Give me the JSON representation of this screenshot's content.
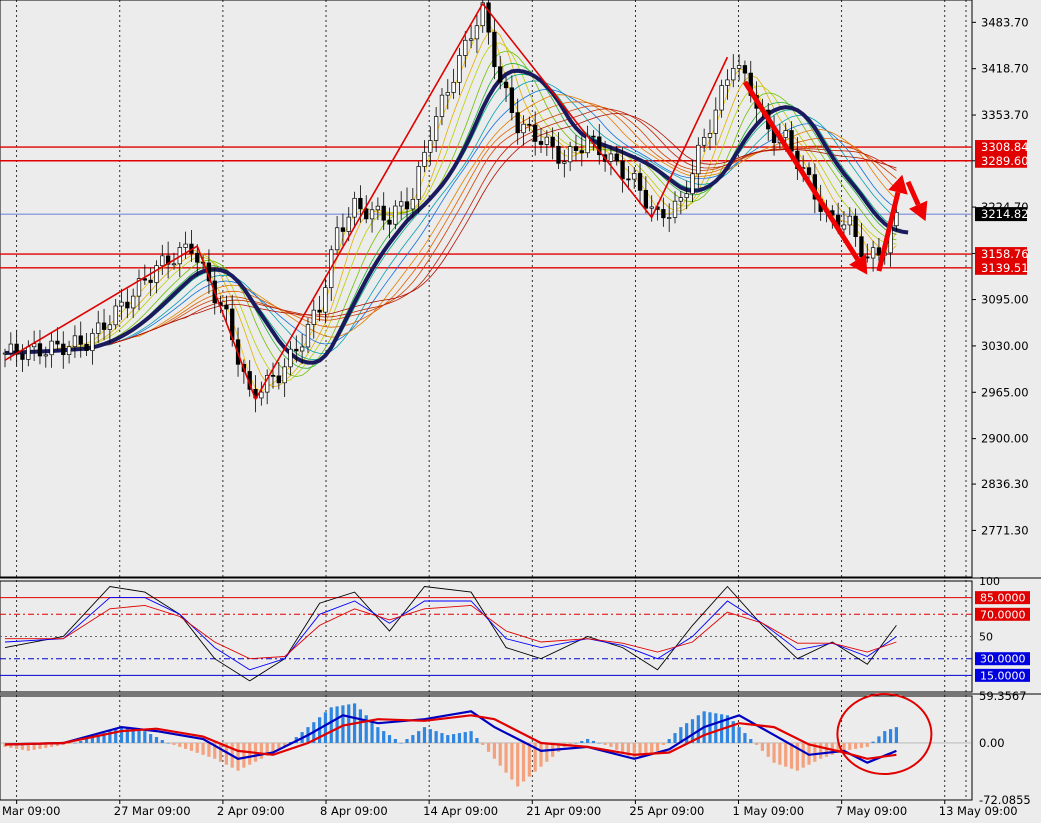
{
  "chart_data": [
    {
      "type": "candlestick",
      "panel": "price",
      "title": "",
      "ylim": [
        2706.0,
        3515.0
      ],
      "y_ticks": [
        "3483.70",
        "3418.70",
        "3353.70",
        "3289.60",
        "3224.70",
        "3159.60",
        "3095.00",
        "3030.00",
        "2965.00",
        "2900.00",
        "2836.30",
        "2771.30"
      ],
      "x_ticks": [
        "Mar 09:00",
        "27 Mar 09:00",
        "2 Apr 09:00",
        "8 Apr 09:00",
        "14 Apr 09:00",
        "21 Apr 09:00",
        "25 Apr 09:00",
        "1 May 09:00",
        "7 May 09:00",
        "13 May 09:00"
      ],
      "x_range_bars": [
        0,
        160
      ],
      "current_price": "3214.82",
      "price_labels": [
        "3308.84",
        "3289.60",
        "3158.76",
        "3139.51"
      ],
      "horizontal_levels": [
        3308.84,
        3289.6,
        3158.76,
        3139.51
      ],
      "price_path": [
        [
          0,
          3020
        ],
        [
          7,
          3025
        ],
        [
          14,
          3035
        ],
        [
          20,
          3085
        ],
        [
          26,
          3140
        ],
        [
          32,
          3170
        ],
        [
          34,
          3135
        ],
        [
          38,
          3070
        ],
        [
          42,
          2960
        ],
        [
          47,
          2990
        ],
        [
          50,
          3025
        ],
        [
          54,
          3085
        ],
        [
          57,
          3190
        ],
        [
          60,
          3225
        ],
        [
          66,
          3210
        ],
        [
          70,
          3240
        ],
        [
          73,
          3330
        ],
        [
          77,
          3410
        ],
        [
          80,
          3470
        ],
        [
          82,
          3500
        ],
        [
          85,
          3400
        ],
        [
          88,
          3340
        ],
        [
          92,
          3320
        ],
        [
          96,
          3290
        ],
        [
          100,
          3320
        ],
        [
          104,
          3290
        ],
        [
          108,
          3260
        ],
        [
          112,
          3210
        ],
        [
          116,
          3230
        ],
        [
          119,
          3300
        ],
        [
          122,
          3360
        ],
        [
          125,
          3430
        ],
        [
          128,
          3390
        ],
        [
          131,
          3330
        ],
        [
          134,
          3320
        ],
        [
          138,
          3260
        ],
        [
          141,
          3210
        ],
        [
          145,
          3200
        ],
        [
          148,
          3150
        ],
        [
          151,
          3170
        ],
        [
          153,
          3210
        ]
      ],
      "drawn_lines": [
        {
          "name": "trend-line-1",
          "points": [
            [
              0,
              3010
            ],
            [
              33,
              3170
            ]
          ]
        },
        {
          "name": "trend-line-2",
          "points": [
            [
              33,
              3170
            ],
            [
              43,
              2955
            ]
          ]
        },
        {
          "name": "trend-line-3",
          "points": [
            [
              43,
              2955
            ],
            [
              82,
              3510
            ]
          ]
        },
        {
          "name": "trend-line-4",
          "points": [
            [
              82,
              3510
            ],
            [
              111,
              3210
            ]
          ]
        },
        {
          "name": "trend-line-5",
          "points": [
            [
              111,
              3210
            ],
            [
              124,
              3435
            ]
          ]
        }
      ],
      "arrows": [
        {
          "name": "arrow-down-1",
          "points": [
            [
              127,
              3400
            ],
            [
              148,
              3130
            ]
          ]
        },
        {
          "name": "arrow-up-1",
          "points": [
            [
              150,
              3135
            ],
            [
              154,
              3270
            ]
          ]
        },
        {
          "name": "arrow-down-2",
          "points": [
            [
              155,
              3260
            ],
            [
              158,
              3205
            ]
          ]
        }
      ]
    },
    {
      "type": "line",
      "panel": "stochastic",
      "ylim": [
        0,
        100
      ],
      "y_ticks": [
        "100",
        "50"
      ],
      "level_labels": [
        "85.0000",
        "70.0000",
        "30.0000",
        "15.0000"
      ],
      "levels": [
        85,
        70,
        50,
        30,
        15
      ],
      "x_range_bars": [
        0,
        160
      ],
      "series": [
        {
          "values": [
            [
              0,
              40
            ],
            [
              10,
              50
            ],
            [
              18,
              95
            ],
            [
              24,
              90
            ],
            [
              30,
              70
            ],
            [
              36,
              30
            ],
            [
              42,
              10
            ],
            [
              48,
              30
            ],
            [
              54,
              80
            ],
            [
              60,
              90
            ],
            [
              66,
              55
            ],
            [
              72,
              95
            ],
            [
              80,
              90
            ],
            [
              86,
              40
            ],
            [
              92,
              30
            ],
            [
              100,
              50
            ],
            [
              106,
              40
            ],
            [
              112,
              20
            ],
            [
              118,
              60
            ],
            [
              124,
              95
            ],
            [
              130,
              60
            ],
            [
              136,
              30
            ],
            [
              142,
              45
            ],
            [
              148,
              25
            ],
            [
              153,
              60
            ]
          ]
        },
        {
          "values": [
            [
              0,
              45
            ],
            [
              10,
              48
            ],
            [
              18,
              85
            ],
            [
              24,
              85
            ],
            [
              30,
              70
            ],
            [
              36,
              40
            ],
            [
              42,
              20
            ],
            [
              48,
              30
            ],
            [
              54,
              70
            ],
            [
              60,
              82
            ],
            [
              66,
              62
            ],
            [
              72,
              82
            ],
            [
              80,
              82
            ],
            [
              86,
              48
            ],
            [
              92,
              40
            ],
            [
              100,
              48
            ],
            [
              106,
              42
            ],
            [
              112,
              30
            ],
            [
              118,
              50
            ],
            [
              124,
              82
            ],
            [
              130,
              62
            ],
            [
              136,
              38
            ],
            [
              142,
              44
            ],
            [
              148,
              32
            ],
            [
              153,
              50
            ]
          ]
        },
        {
          "values": [
            [
              0,
              48
            ],
            [
              10,
              48
            ],
            [
              18,
              75
            ],
            [
              24,
              78
            ],
            [
              30,
              68
            ],
            [
              36,
              45
            ],
            [
              42,
              30
            ],
            [
              48,
              32
            ],
            [
              54,
              60
            ],
            [
              60,
              75
            ],
            [
              66,
              65
            ],
            [
              72,
              75
            ],
            [
              80,
              78
            ],
            [
              86,
              55
            ],
            [
              92,
              45
            ],
            [
              100,
              48
            ],
            [
              106,
              44
            ],
            [
              112,
              36
            ],
            [
              118,
              45
            ],
            [
              124,
              72
            ],
            [
              130,
              62
            ],
            [
              136,
              44
            ],
            [
              142,
              44
            ],
            [
              148,
              36
            ],
            [
              153,
              45
            ]
          ]
        }
      ]
    },
    {
      "type": "histogram",
      "panel": "macd",
      "ylim": [
        -72.0855,
        59.3567
      ],
      "y_ticks": [
        "59.3567",
        "0.00",
        "-72.0855"
      ],
      "x_range_bars": [
        0,
        160
      ],
      "histogram": [
        [
          0,
          -5
        ],
        [
          4,
          -10
        ],
        [
          8,
          -5
        ],
        [
          12,
          0
        ],
        [
          16,
          10
        ],
        [
          20,
          20
        ],
        [
          24,
          15
        ],
        [
          28,
          0
        ],
        [
          32,
          -10
        ],
        [
          36,
          -20
        ],
        [
          40,
          -35
        ],
        [
          44,
          -20
        ],
        [
          48,
          -5
        ],
        [
          52,
          20
        ],
        [
          56,
          45
        ],
        [
          60,
          50
        ],
        [
          64,
          20
        ],
        [
          68,
          0
        ],
        [
          72,
          20
        ],
        [
          76,
          10
        ],
        [
          80,
          15
        ],
        [
          84,
          -20
        ],
        [
          88,
          -55
        ],
        [
          92,
          -30
        ],
        [
          96,
          -5
        ],
        [
          100,
          5
        ],
        [
          104,
          -5
        ],
        [
          108,
          -20
        ],
        [
          112,
          -10
        ],
        [
          116,
          20
        ],
        [
          120,
          40
        ],
        [
          124,
          35
        ],
        [
          128,
          5
        ],
        [
          132,
          -25
        ],
        [
          136,
          -35
        ],
        [
          140,
          -20
        ],
        [
          144,
          -10
        ],
        [
          148,
          -5
        ],
        [
          151,
          15
        ],
        [
          153,
          20
        ]
      ],
      "series": [
        {
          "values": [
            [
              0,
              -2
            ],
            [
              10,
              0
            ],
            [
              20,
              20
            ],
            [
              26,
              15
            ],
            [
              34,
              5
            ],
            [
              40,
              -20
            ],
            [
              46,
              -12
            ],
            [
              52,
              10
            ],
            [
              58,
              35
            ],
            [
              64,
              25
            ],
            [
              72,
              30
            ],
            [
              80,
              40
            ],
            [
              84,
              20
            ],
            [
              92,
              -10
            ],
            [
              100,
              -5
            ],
            [
              108,
              -20
            ],
            [
              114,
              -8
            ],
            [
              120,
              20
            ],
            [
              126,
              35
            ],
            [
              132,
              10
            ],
            [
              138,
              -15
            ],
            [
              144,
              -10
            ],
            [
              148,
              -25
            ],
            [
              153,
              -10
            ]
          ]
        },
        {
          "values": [
            [
              0,
              -2
            ],
            [
              10,
              0
            ],
            [
              20,
              15
            ],
            [
              26,
              18
            ],
            [
              34,
              8
            ],
            [
              40,
              -10
            ],
            [
              46,
              -15
            ],
            [
              52,
              0
            ],
            [
              58,
              22
            ],
            [
              64,
              30
            ],
            [
              72,
              28
            ],
            [
              80,
              35
            ],
            [
              84,
              30
            ],
            [
              92,
              0
            ],
            [
              100,
              -5
            ],
            [
              108,
              -15
            ],
            [
              114,
              -12
            ],
            [
              120,
              10
            ],
            [
              126,
              25
            ],
            [
              132,
              20
            ],
            [
              138,
              -2
            ],
            [
              144,
              -12
            ],
            [
              148,
              -20
            ],
            [
              153,
              -15
            ]
          ]
        }
      ]
    }
  ]
}
